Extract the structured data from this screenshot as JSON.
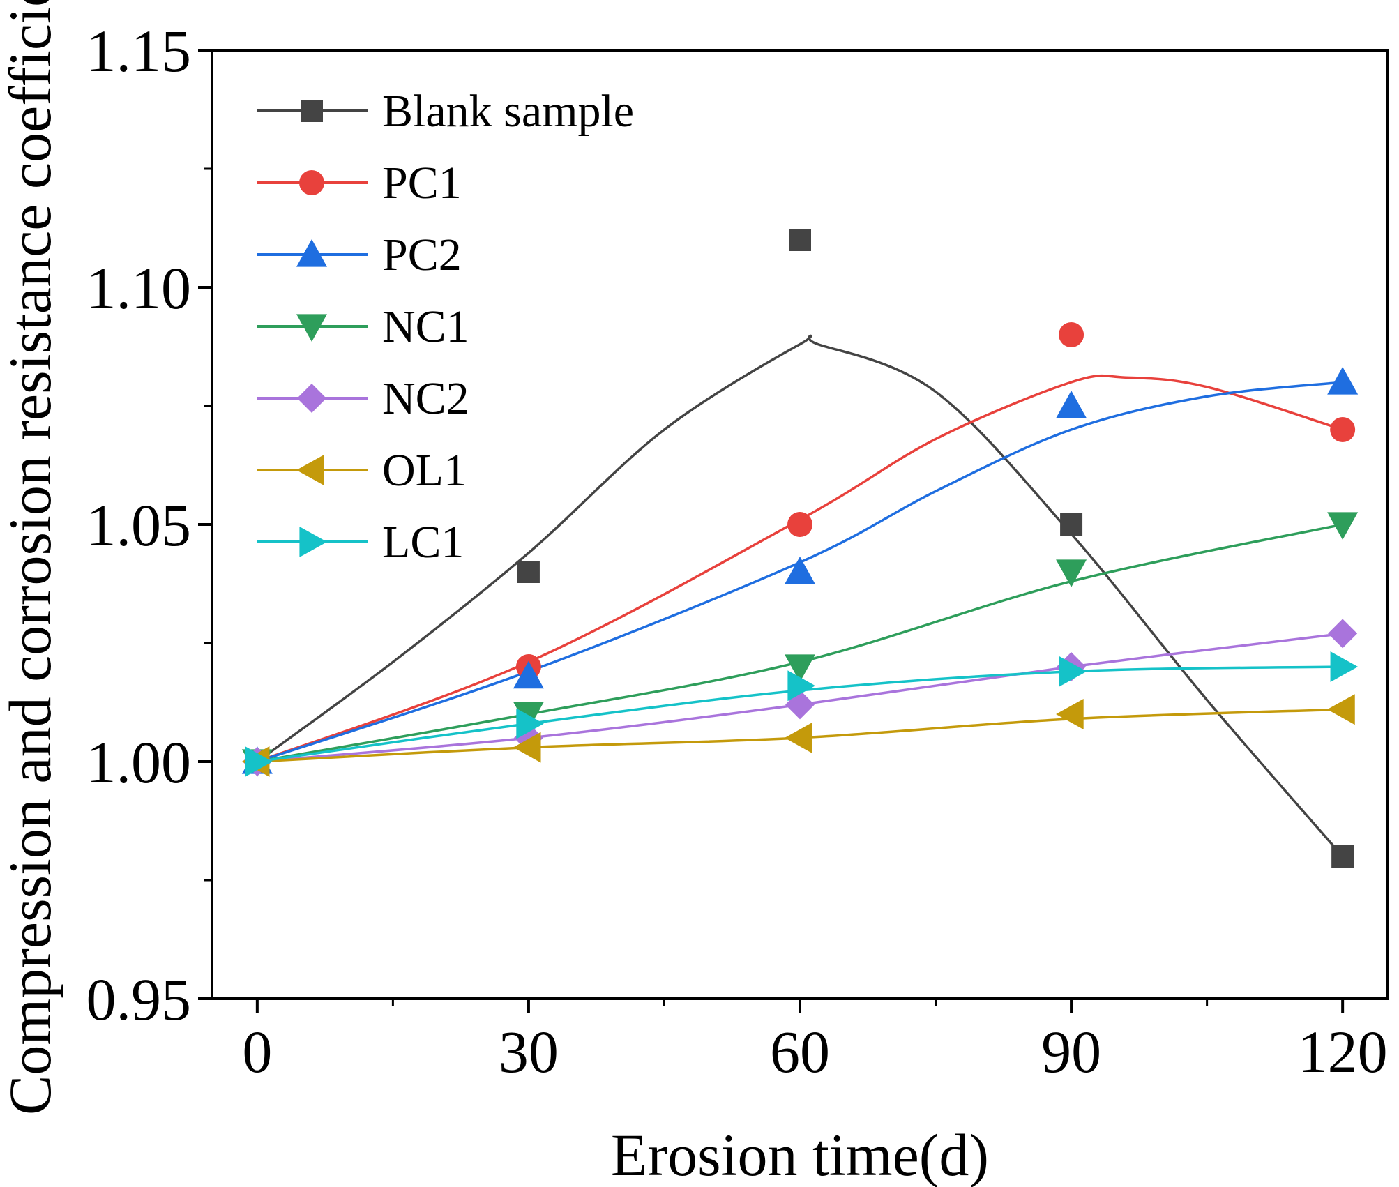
{
  "chart_data": {
    "type": "line",
    "title": "",
    "xlabel": "Erosion time(d)",
    "ylabel": "Compression and corrosion resistance coefficient",
    "x": [
      0,
      30,
      60,
      90,
      120
    ],
    "xticks": [
      0,
      30,
      60,
      90,
      120
    ],
    "xtick_labels": [
      "0",
      "30",
      "60",
      "90",
      "120"
    ],
    "xlim": [
      -5,
      125
    ],
    "ylim": [
      0.95,
      1.15
    ],
    "yticks": [
      0.95,
      1.0,
      1.05,
      1.1,
      1.15
    ],
    "ytick_labels": [
      "0.95",
      "1.00",
      "1.05",
      "1.10",
      "1.15"
    ],
    "grid": false,
    "legend_position": "top-left",
    "series": [
      {
        "name": "Blank sample",
        "color": "#444444",
        "marker": "square",
        "values": [
          1.0,
          1.04,
          1.11,
          1.05,
          0.98
        ]
      },
      {
        "name": "PC1",
        "color": "#e8413c",
        "marker": "circle",
        "values": [
          1.0,
          1.02,
          1.05,
          1.09,
          1.07
        ]
      },
      {
        "name": "PC2",
        "color": "#1f6ee0",
        "marker": "triangle-up",
        "values": [
          1.0,
          1.018,
          1.04,
          1.075,
          1.08
        ]
      },
      {
        "name": "NC1",
        "color": "#2e9e5b",
        "marker": "triangle-down",
        "values": [
          1.0,
          1.01,
          1.02,
          1.04,
          1.05
        ]
      },
      {
        "name": "NC2",
        "color": "#a974dc",
        "marker": "diamond",
        "values": [
          1.0,
          1.005,
          1.012,
          1.02,
          1.027
        ]
      },
      {
        "name": "OL1",
        "color": "#c49a0b",
        "marker": "triangle-left",
        "values": [
          1.0,
          1.003,
          1.005,
          1.01,
          1.011
        ]
      },
      {
        "name": "LC1",
        "color": "#15c2c8",
        "marker": "triangle-right",
        "values": [
          1.0,
          1.008,
          1.016,
          1.019,
          1.02
        ]
      }
    ],
    "fit_curves": [
      {
        "series": "Blank sample",
        "x": [
          0,
          15,
          30,
          45,
          60,
          62,
          75,
          90,
          105,
          120
        ],
        "values": [
          1.0,
          1.021,
          1.044,
          1.07,
          1.088,
          1.088,
          1.078,
          1.048,
          1.013,
          0.98
        ]
      },
      {
        "series": "PC1",
        "x": [
          0,
          30,
          60,
          75,
          90,
          96,
          105,
          120
        ],
        "values": [
          1.0,
          1.021,
          1.051,
          1.068,
          1.08,
          1.081,
          1.079,
          1.07
        ]
      },
      {
        "series": "PC2",
        "x": [
          0,
          30,
          60,
          75,
          90,
          105,
          120
        ],
        "values": [
          1.0,
          1.019,
          1.042,
          1.057,
          1.07,
          1.077,
          1.08
        ]
      },
      {
        "series": "NC1",
        "x": [
          0,
          30,
          60,
          90,
          120
        ],
        "values": [
          1.0,
          1.01,
          1.021,
          1.038,
          1.05
        ]
      },
      {
        "series": "NC2",
        "x": [
          0,
          30,
          60,
          90,
          120
        ],
        "values": [
          1.0,
          1.005,
          1.012,
          1.02,
          1.027
        ]
      },
      {
        "series": "OL1",
        "x": [
          0,
          30,
          60,
          90,
          120
        ],
        "values": [
          1.0,
          1.003,
          1.005,
          1.009,
          1.011
        ]
      },
      {
        "series": "LC1",
        "x": [
          0,
          30,
          60,
          90,
          120
        ],
        "values": [
          1.0,
          1.008,
          1.015,
          1.019,
          1.02
        ]
      }
    ]
  }
}
